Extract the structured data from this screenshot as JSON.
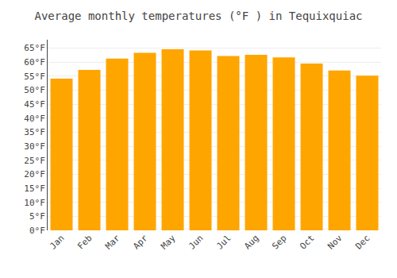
{
  "chart_data": {
    "type": "bar",
    "title": "Average monthly temperatures (°F ) in Tequixquiac",
    "categories": [
      "Jan",
      "Feb",
      "Mar",
      "Apr",
      "May",
      "Jun",
      "Jul",
      "Aug",
      "Sep",
      "Oct",
      "Nov",
      "Dec"
    ],
    "values": [
      54.1,
      57.2,
      61.3,
      63.3,
      64.6,
      64.2,
      62.2,
      62.6,
      61.7,
      59.5,
      57.0,
      55.2
    ],
    "color": "#FFA500",
    "ylim": [
      0,
      68
    ],
    "yticks": [
      {
        "value": 0,
        "label": "0°F"
      },
      {
        "value": 5,
        "label": "5°F"
      },
      {
        "value": 10,
        "label": "10°F"
      },
      {
        "value": 15,
        "label": "15°F"
      },
      {
        "value": 20,
        "label": "20°F"
      },
      {
        "value": 25,
        "label": "25°F"
      },
      {
        "value": 30,
        "label": "30°F"
      },
      {
        "value": 35,
        "label": "35°F"
      },
      {
        "value": 40,
        "label": "40°F"
      },
      {
        "value": 45,
        "label": "45°F"
      },
      {
        "value": 50,
        "label": "50°F"
      },
      {
        "value": 55,
        "label": "55°F"
      },
      {
        "value": 60,
        "label": "60°F"
      },
      {
        "value": 65,
        "label": "65°F"
      }
    ],
    "grid": true
  }
}
